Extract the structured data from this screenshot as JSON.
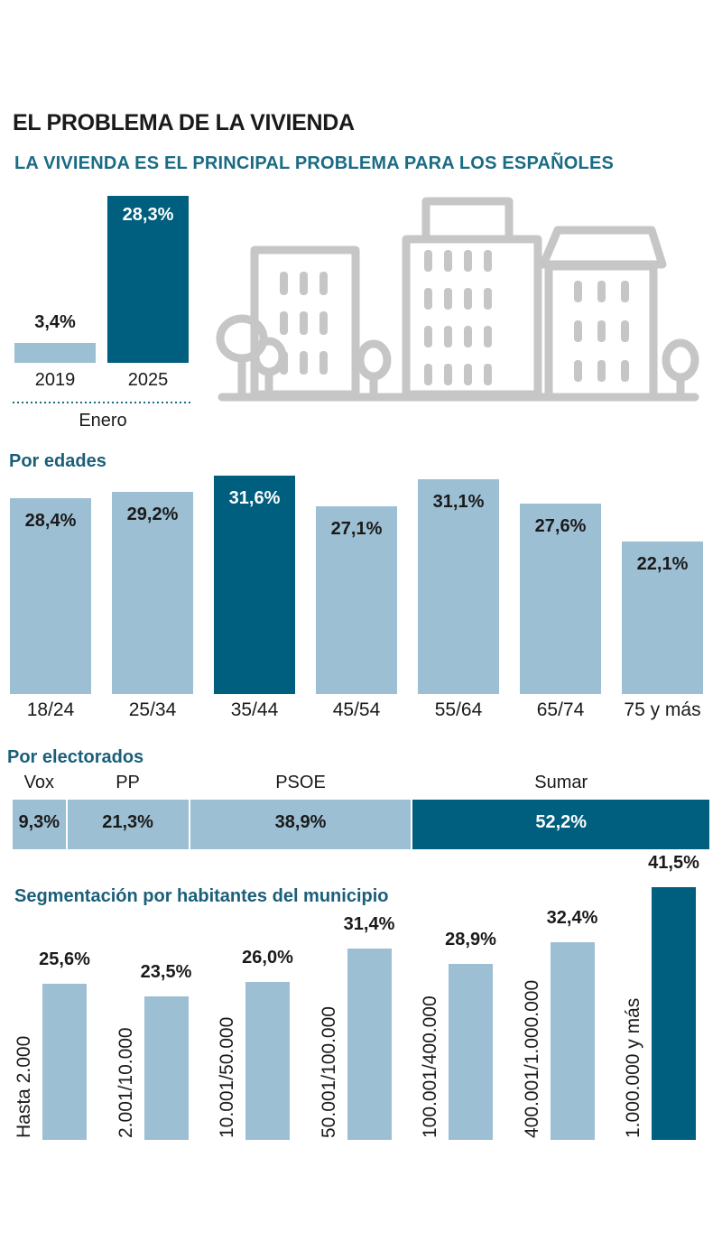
{
  "title": "EL PROBLEMA DE LA VIVIENDA",
  "subtitle": "LA VIVIENDA ES EL PRINCIPAL PROBLEMA PARA LOS ESPAÑOLES",
  "colors": {
    "light": "#9dbfd3",
    "dark": "#005e7e",
    "accent_text": "#1a6b84",
    "illustration": "#c6c6c6"
  },
  "chart_data": [
    {
      "id": "enero",
      "type": "bar",
      "categories": [
        "2019",
        "2025"
      ],
      "values": [
        3.4,
        28.3
      ],
      "labels": [
        "3,4%",
        "28,3%"
      ],
      "xlabel": "Enero",
      "highlight": "2025"
    },
    {
      "id": "edades",
      "type": "bar",
      "title": "Por edades",
      "categories": [
        "18/24",
        "25/34",
        "35/44",
        "45/54",
        "55/64",
        "65/74",
        "75 y más"
      ],
      "values": [
        28.4,
        29.2,
        31.6,
        27.1,
        31.1,
        27.6,
        22.1
      ],
      "labels": [
        "28,4%",
        "29,2%",
        "31,6%",
        "27,1%",
        "31,1%",
        "27,6%",
        "22,1%"
      ],
      "highlight": "35/44"
    },
    {
      "id": "electorados",
      "type": "bar",
      "title": "Por electorados",
      "categories": [
        "Vox",
        "PP",
        "PSOE",
        "Sumar"
      ],
      "values": [
        9.3,
        21.3,
        38.9,
        52.2
      ],
      "labels": [
        "9,3%",
        "21,3%",
        "38,9%",
        "52,2%"
      ],
      "highlight": "Sumar"
    },
    {
      "id": "municipio",
      "type": "bar",
      "title": "Segmentación por habitantes del municipio",
      "categories": [
        "Hasta 2.000",
        "2.001/10.000",
        "10.001/50.000",
        "50.001/100.000",
        "100.001/400.000",
        "400.001/1.000.000",
        "1.000.000 y más"
      ],
      "values": [
        25.6,
        23.5,
        26.0,
        31.4,
        28.9,
        32.4,
        41.5
      ],
      "labels": [
        "25,6%",
        "23,5%",
        "26,0%",
        "31,4%",
        "28,9%",
        "32,4%",
        "41,5%"
      ],
      "highlight": "1.000.000 y más"
    }
  ]
}
